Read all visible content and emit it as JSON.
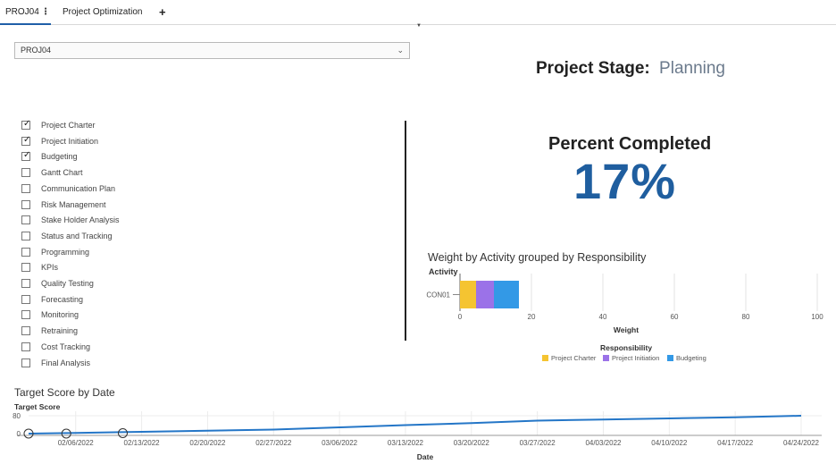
{
  "tabs": {
    "active_label": "PROJ04",
    "active_menu": "⋮",
    "second_label": "Project Optimization",
    "add_label": "+"
  },
  "project_select": {
    "value": "PROJ04",
    "chevron": "⌄"
  },
  "stage": {
    "label": "Project Stage:",
    "value": "Planning"
  },
  "checklist": [
    {
      "label": "Project Charter",
      "checked": true
    },
    {
      "label": "Project Initiation",
      "checked": true
    },
    {
      "label": "Budgeting",
      "checked": true
    },
    {
      "label": "Gantt Chart",
      "checked": false
    },
    {
      "label": "Communication Plan",
      "checked": false
    },
    {
      "label": "Risk Management",
      "checked": false
    },
    {
      "label": "Stake Holder Analysis",
      "checked": false
    },
    {
      "label": "Status and Tracking",
      "checked": false
    },
    {
      "label": "Programming",
      "checked": false
    },
    {
      "label": "KPIs",
      "checked": false
    },
    {
      "label": "Quality Testing",
      "checked": false
    },
    {
      "label": "Forecasting",
      "checked": false
    },
    {
      "label": "Monitoring",
      "checked": false
    },
    {
      "label": "Retraining",
      "checked": false
    },
    {
      "label": "Cost Tracking",
      "checked": false
    },
    {
      "label": "Final Analysis",
      "checked": false
    }
  ],
  "percent": {
    "title": "Percent Completed",
    "value": "17%"
  },
  "weight_chart": {
    "title": "Weight by Activity grouped by Responsibility",
    "ylabel": "Activity",
    "xlabel": "Weight",
    "legend_title": "Responsibility"
  },
  "target_chart": {
    "title": "Target Score by Date",
    "ylabel": "Target Score",
    "xlabel": "Date"
  },
  "colors": {
    "accent": "#1f5e9f",
    "line": "#2476c7",
    "charter": "#f5c431",
    "initiation": "#9b72e8",
    "budgeting": "#3399e6"
  },
  "chart_data": [
    {
      "type": "bar",
      "orientation": "horizontal",
      "stacked": true,
      "title": "Weight by Activity grouped by Responsibility",
      "xlabel": "Weight",
      "ylabel": "Activity",
      "categories": [
        "CON01"
      ],
      "series": [
        {
          "name": "Project Charter",
          "values": [
            4.5
          ]
        },
        {
          "name": "Project Initiation",
          "values": [
            5
          ]
        },
        {
          "name": "Budgeting",
          "values": [
            7
          ]
        }
      ],
      "xlim": [
        0,
        100
      ],
      "xticks": [
        0,
        20,
        40,
        60,
        80,
        100
      ],
      "legend_position": "bottom",
      "grid": true
    },
    {
      "type": "line",
      "title": "Target Score by Date",
      "xlabel": "Date",
      "ylabel": "Target Score",
      "x_ticks": [
        "02/06/2022",
        "02/13/2022",
        "02/20/2022",
        "02/27/2022",
        "03/06/2022",
        "03/13/2022",
        "03/20/2022",
        "03/27/2022",
        "04/03/2022",
        "04/10/2022",
        "04/17/2022",
        "04/24/2022"
      ],
      "yticks": [
        0,
        80
      ],
      "ylim": [
        0,
        100
      ],
      "x": [
        "02/01/2022",
        "02/06/2022",
        "02/13/2022",
        "02/20/2022",
        "02/27/2022",
        "03/06/2022",
        "03/13/2022",
        "03/20/2022",
        "03/27/2022",
        "04/03/2022",
        "04/10/2022",
        "04/17/2022",
        "04/24/2022"
      ],
      "y": [
        0,
        3,
        8,
        13,
        18,
        28,
        38,
        47,
        58,
        63,
        68,
        73,
        80
      ],
      "markers": [
        {
          "x": "02/01/2022",
          "y": 0
        },
        {
          "x": "02/05/2022",
          "y": 0
        },
        {
          "x": "02/11/2022",
          "y": 2
        }
      ],
      "grid": true
    }
  ]
}
